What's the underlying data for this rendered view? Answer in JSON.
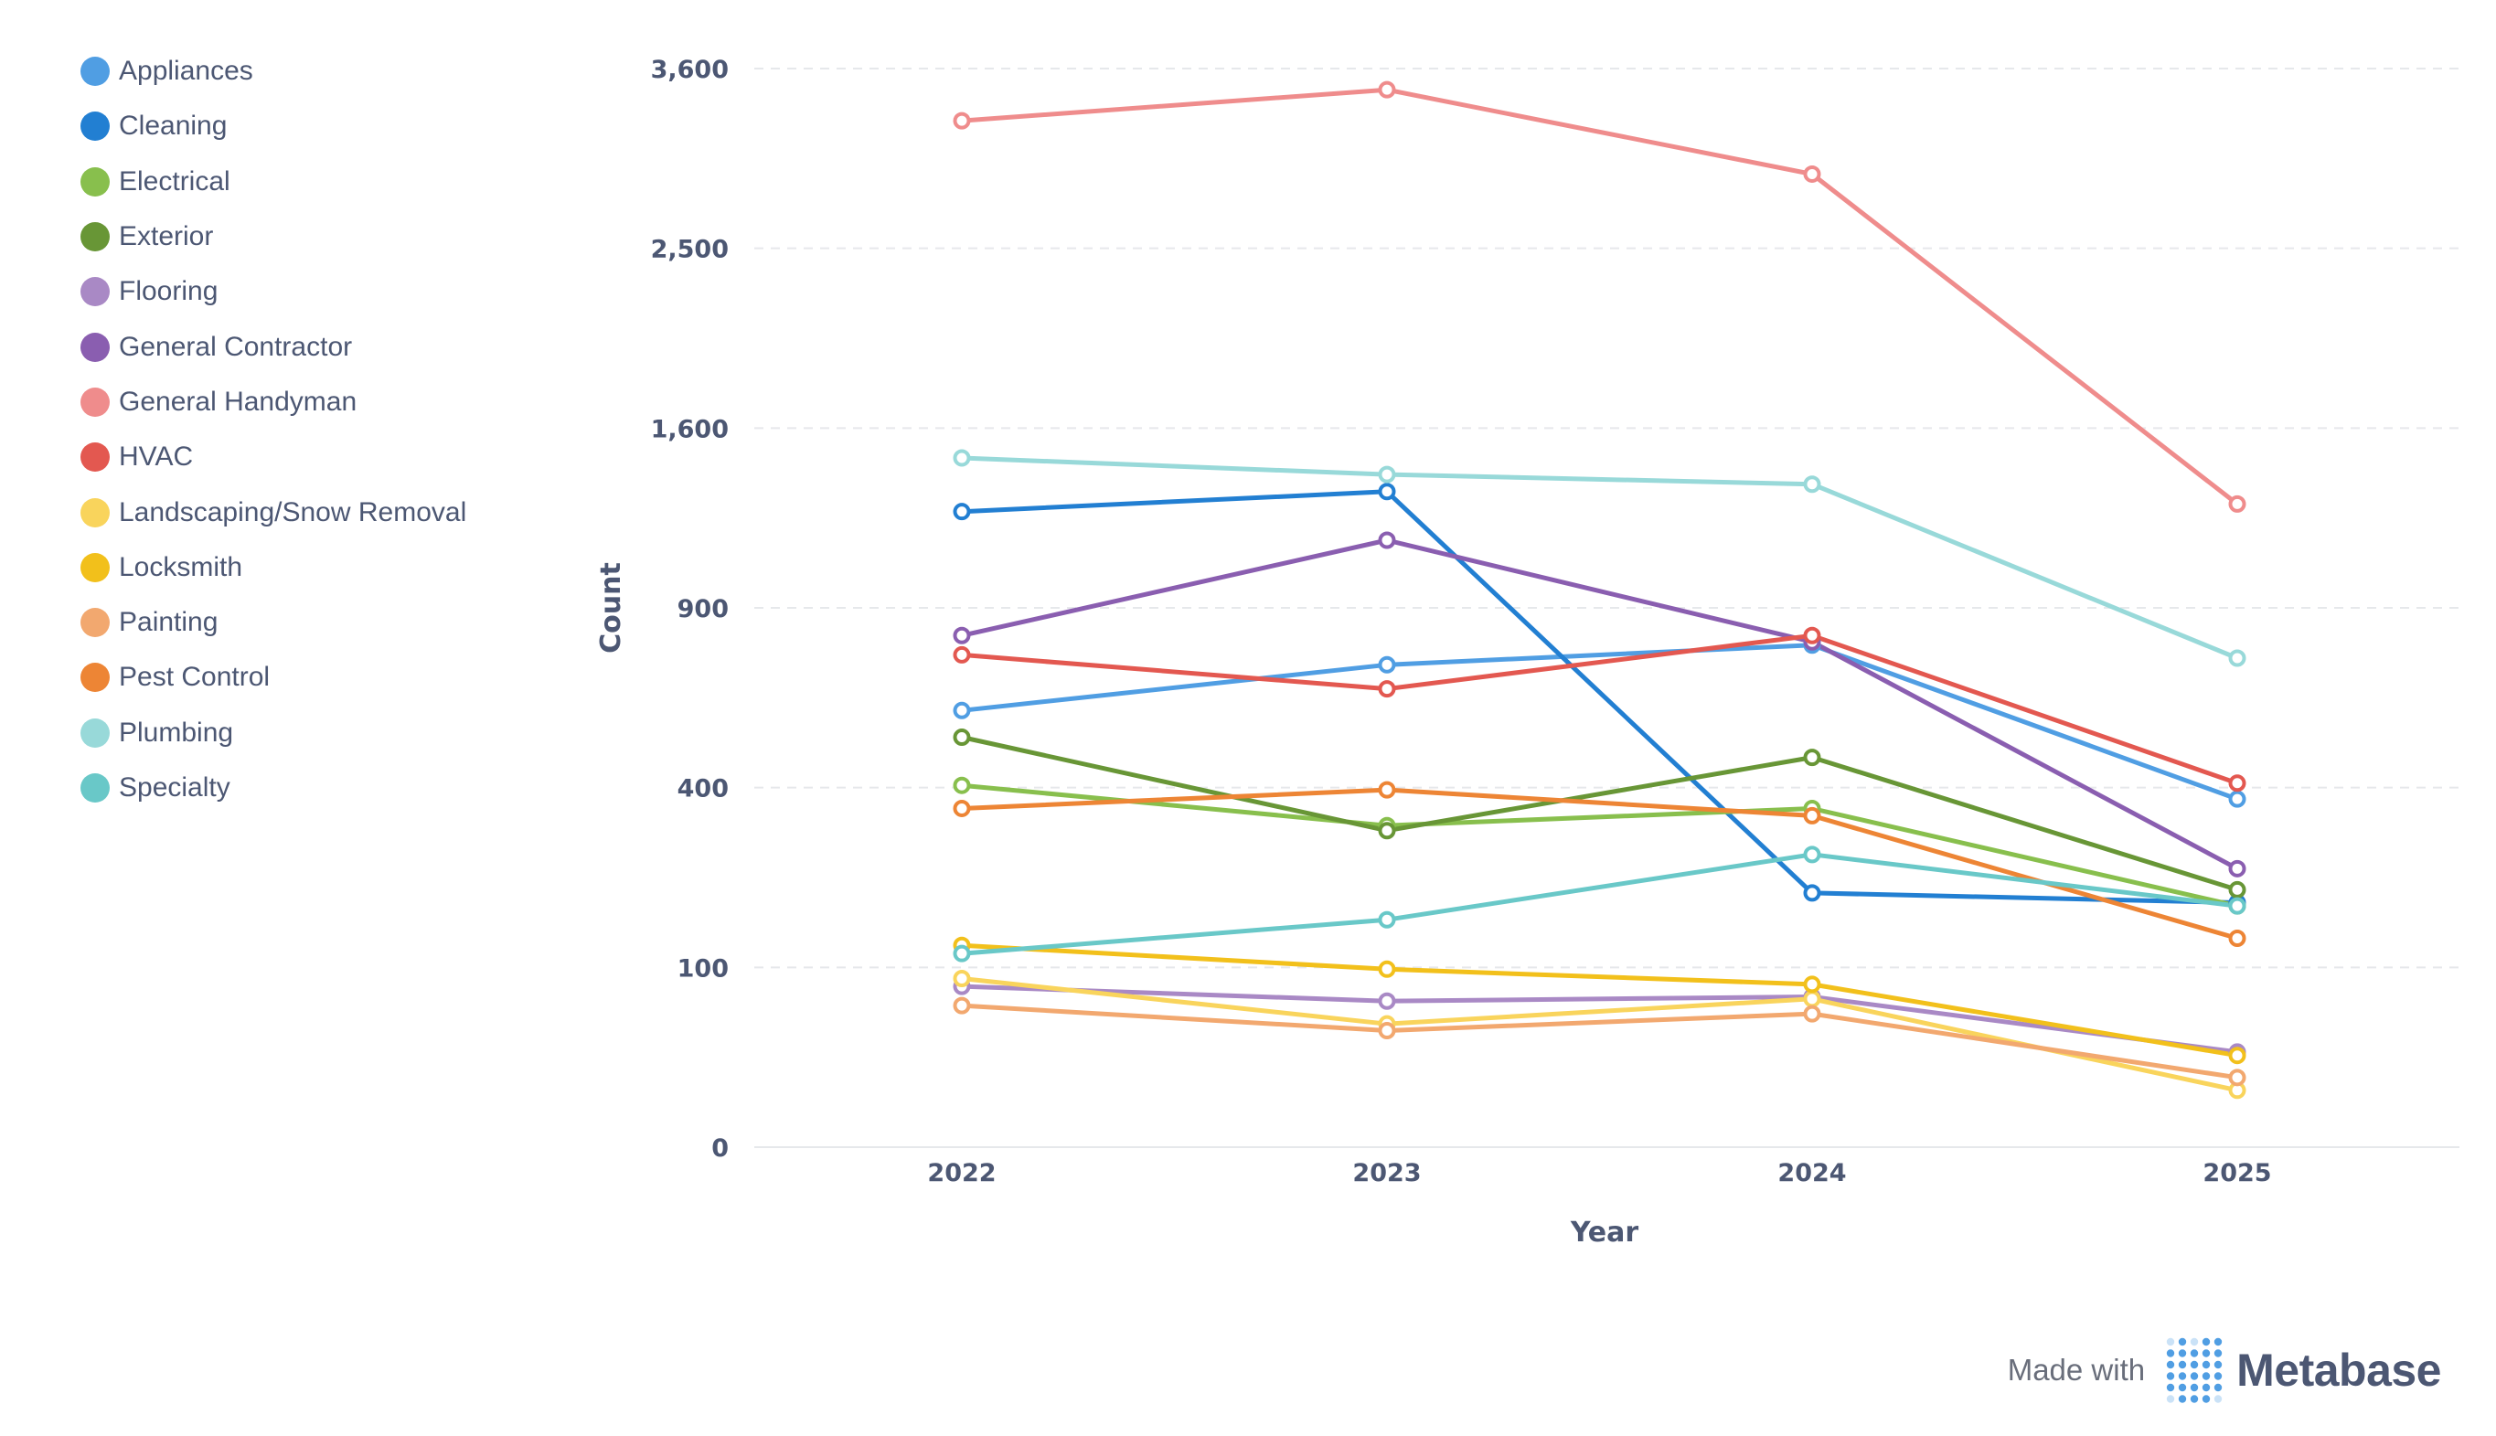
{
  "chart_data": {
    "type": "line",
    "xlabel": "Year",
    "ylabel": "Count",
    "x": [
      "2022",
      "2023",
      "2024",
      "2025"
    ],
    "y_ticks": [
      0,
      100,
      400,
      900,
      1600,
      2500,
      3600
    ],
    "y_scale": "sqrt",
    "grid": true,
    "legend_position": "left",
    "series": [
      {
        "name": "Appliances",
        "color": "#509ee3",
        "values": [
          590,
          720,
          780,
          375
        ]
      },
      {
        "name": "Cleaning",
        "color": "#227fd2",
        "values": [
          1250,
          1330,
          200,
          185
        ]
      },
      {
        "name": "Electrical",
        "color": "#88bf4d",
        "values": [
          405,
          320,
          355,
          180
        ]
      },
      {
        "name": "Exterior",
        "color": "#689636",
        "values": [
          520,
          310,
          470,
          205
        ]
      },
      {
        "name": "Flooring",
        "color": "#a989c5",
        "values": [
          80,
          66,
          70,
          28
        ]
      },
      {
        "name": "General Contractor",
        "color": "#8a5eb0",
        "values": [
          810,
          1140,
          790,
          240
        ]
      },
      {
        "name": "General Handyman",
        "color": "#ef8c8c",
        "values": [
          3260,
          3460,
          2930,
          1280
        ]
      },
      {
        "name": "HVAC",
        "color": "#e35850",
        "values": [
          750,
          650,
          810,
          410
        ]
      },
      {
        "name": "Landscaping/Snow Removal",
        "color": "#f9d45c",
        "values": [
          88,
          47,
          68,
          10
        ]
      },
      {
        "name": "Locksmith",
        "color": "#f2c01b",
        "values": [
          126,
          98,
          82,
          26
        ]
      },
      {
        "name": "Painting",
        "color": "#f2a86f",
        "values": [
          62,
          42,
          55,
          15
        ]
      },
      {
        "name": "Pest Control",
        "color": "#ed8535",
        "values": [
          355,
          395,
          340,
          135
        ]
      },
      {
        "name": "Plumbing",
        "color": "#98d9d9",
        "values": [
          1470,
          1400,
          1360,
          740
        ]
      },
      {
        "name": "Specialty",
        "color": "#69c8c8",
        "values": [
          116,
          160,
          265,
          180
        ]
      }
    ]
  },
  "footer": {
    "made_with": "Made with",
    "brand": "Metabase",
    "brand_color": "#509ee3",
    "logo_icon": "metabase-dots-logo"
  }
}
